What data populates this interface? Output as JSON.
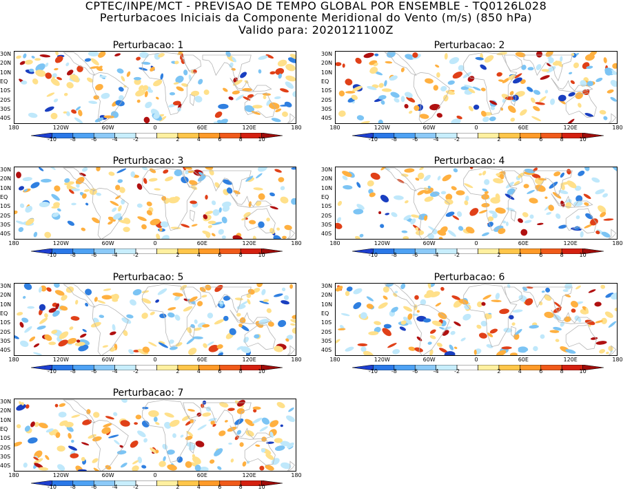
{
  "titles": {
    "line1": "CPTEC/INPE/MCT - PREVISAO DE TEMPO GLOBAL POR ENSEMBLE - TQ0126L028",
    "line2": "Perturbacoes Iniciais da Componente Meridional do Vento (m/s) (850 hPa)",
    "line3": "Valido para: 2020121100Z"
  },
  "panels": [
    {
      "title": "Perturbacao: 1"
    },
    {
      "title": "Perturbacao: 2"
    },
    {
      "title": "Perturbacao: 3"
    },
    {
      "title": "Perturbacao: 4"
    },
    {
      "title": "Perturbacao: 5"
    },
    {
      "title": "Perturbacao: 6"
    },
    {
      "title": "Perturbacao: 7"
    }
  ],
  "lat_labels": [
    "30N",
    "20N",
    "10N",
    "EQ",
    "10S",
    "20S",
    "30S",
    "40S"
  ],
  "lon_labels": [
    "180",
    "120W",
    "60W",
    "0",
    "60E",
    "120E",
    "180"
  ],
  "colorbar": {
    "labels": [
      "-10",
      "-8",
      "-6",
      "-4",
      "-2",
      "2",
      "4",
      "6",
      "8",
      "10"
    ],
    "colors": [
      "#1e3fd0",
      "#2a78e8",
      "#4ea2f4",
      "#8ccaf8",
      "#c8eefc",
      "#ffffff",
      "#fff0a0",
      "#ffc64a",
      "#ff9a28",
      "#f05a1a",
      "#d42010",
      "#a00c0a"
    ]
  },
  "map_colors": {
    "land": "#b4b4b4",
    "pos_light": "#ffe08a",
    "pos_mid": "#ffb040",
    "pos_strong": "#e04018",
    "pos_dark": "#b01010",
    "neg_light": "#bfe8fb",
    "neg_mid": "#7cc4f4",
    "neg_strong": "#2f7fe0",
    "neg_dark": "#1a3fc0"
  }
}
